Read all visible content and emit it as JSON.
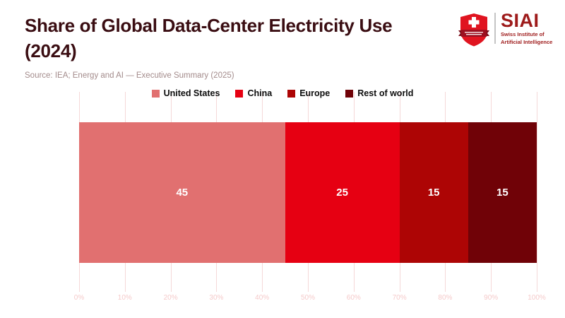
{
  "header": {
    "title_line1": "Share of Global Data-Center Electricity Use",
    "title_line2": "(2024)",
    "source": "Source: IEA; Energy and AI — Executive Summary (2025)"
  },
  "logo": {
    "acronym": "SIAI",
    "name_line1": "Swiss Institute of",
    "name_line2": "Artificial Intelligence",
    "text_color": "#9e1b1b",
    "shield_red": "#e01420",
    "banner_red": "#9c1020"
  },
  "chart_data": {
    "type": "bar",
    "subtype": "horizontal-stacked",
    "title": "Share of Global Data-Center Electricity Use (2024)",
    "unit": "percent",
    "series": [
      {
        "name": "United States",
        "value": 45,
        "color": "#e17070"
      },
      {
        "name": "China",
        "value": 25,
        "color": "#e60012"
      },
      {
        "name": "Europe",
        "value": 15,
        "color": "#ad0505"
      },
      {
        "name": "Rest of world",
        "value": 15,
        "color": "#700207"
      }
    ],
    "x_ticks": [
      "0%",
      "10%",
      "20%",
      "30%",
      "40%",
      "50%",
      "60%",
      "70%",
      "80%",
      "90%",
      "100%"
    ],
    "xlim": [
      0,
      100
    ],
    "grid": true,
    "legend_position": "top-center",
    "gridline_color": "#f5d8d8",
    "tick_label_color": "#f5caca"
  }
}
